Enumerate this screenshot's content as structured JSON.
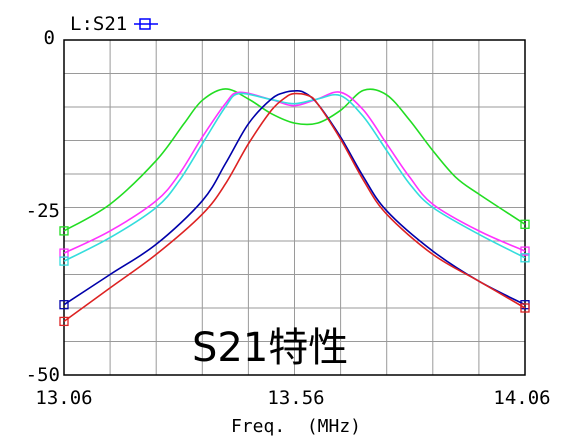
{
  "chart_data": {
    "type": "line",
    "legend_label": "L:S21",
    "annotation": "S21特性",
    "xlabel": "Freq.  (MHz)",
    "x_ticks": [
      "13.06",
      "13.56",
      "14.06"
    ],
    "y_ticks": [
      "0",
      "-25",
      "-50"
    ],
    "xlim": [
      13.06,
      14.06
    ],
    "ylim": [
      -50,
      0
    ],
    "grid": true,
    "x_grid_divisions": 10,
    "y_grid_divisions": 10,
    "legend_color": "#0000ff",
    "series": [
      {
        "color": "#22dd22",
        "x": [
          13.06,
          13.16,
          13.26,
          13.32,
          13.36,
          13.41,
          13.46,
          13.51,
          13.56,
          13.61,
          13.66,
          13.71,
          13.76,
          13.81,
          13.86,
          13.91,
          13.96,
          14.06
        ],
        "y": [
          -28.5,
          -24.5,
          -18.0,
          -12.5,
          -9.0,
          -7.3,
          -8.8,
          -11.0,
          -12.4,
          -12.4,
          -10.5,
          -7.5,
          -8.2,
          -12.0,
          -16.5,
          -20.5,
          -23.0,
          -27.5
        ]
      },
      {
        "color": "#ff33ff",
        "x": [
          13.06,
          13.16,
          13.26,
          13.31,
          13.36,
          13.41,
          13.44,
          13.51,
          13.56,
          13.61,
          13.66,
          13.71,
          13.76,
          13.81,
          13.86,
          13.96,
          14.06
        ],
        "y": [
          -31.8,
          -28.5,
          -24.0,
          -20.0,
          -14.5,
          -9.5,
          -7.8,
          -8.9,
          -9.8,
          -8.8,
          -7.8,
          -10.5,
          -15.5,
          -20.5,
          -24.5,
          -28.5,
          -31.5
        ]
      },
      {
        "color": "#33dddd",
        "x": [
          13.06,
          13.16,
          13.26,
          13.31,
          13.36,
          13.41,
          13.44,
          13.51,
          13.56,
          13.61,
          13.66,
          13.71,
          13.76,
          13.81,
          13.86,
          13.96,
          14.06
        ],
        "y": [
          -33.0,
          -29.5,
          -25.0,
          -21.0,
          -15.5,
          -10.0,
          -8.0,
          -8.9,
          -9.5,
          -8.8,
          -8.3,
          -11.5,
          -16.5,
          -21.5,
          -25.0,
          -29.0,
          -32.5
        ]
      },
      {
        "color": "#0000aa",
        "x": [
          13.06,
          13.16,
          13.26,
          13.36,
          13.41,
          13.46,
          13.51,
          13.54,
          13.56,
          13.58,
          13.61,
          13.66,
          13.71,
          13.76,
          13.86,
          13.96,
          14.06
        ],
        "y": [
          -39.5,
          -35.0,
          -30.5,
          -24.0,
          -18.5,
          -12.5,
          -8.8,
          -7.8,
          -7.6,
          -7.8,
          -9.5,
          -14.5,
          -20.5,
          -25.5,
          -31.5,
          -36.0,
          -39.5
        ]
      },
      {
        "color": "#dd2222",
        "x": [
          13.06,
          13.16,
          13.26,
          13.36,
          13.41,
          13.46,
          13.51,
          13.54,
          13.56,
          13.59,
          13.61,
          13.66,
          13.71,
          13.76,
          13.86,
          13.96,
          14.06
        ],
        "y": [
          -42.0,
          -37.0,
          -32.0,
          -26.0,
          -21.5,
          -15.5,
          -10.5,
          -8.6,
          -8.0,
          -8.3,
          -9.5,
          -14.8,
          -21.0,
          -26.0,
          -32.0,
          -36.0,
          -40.0
        ]
      }
    ]
  }
}
